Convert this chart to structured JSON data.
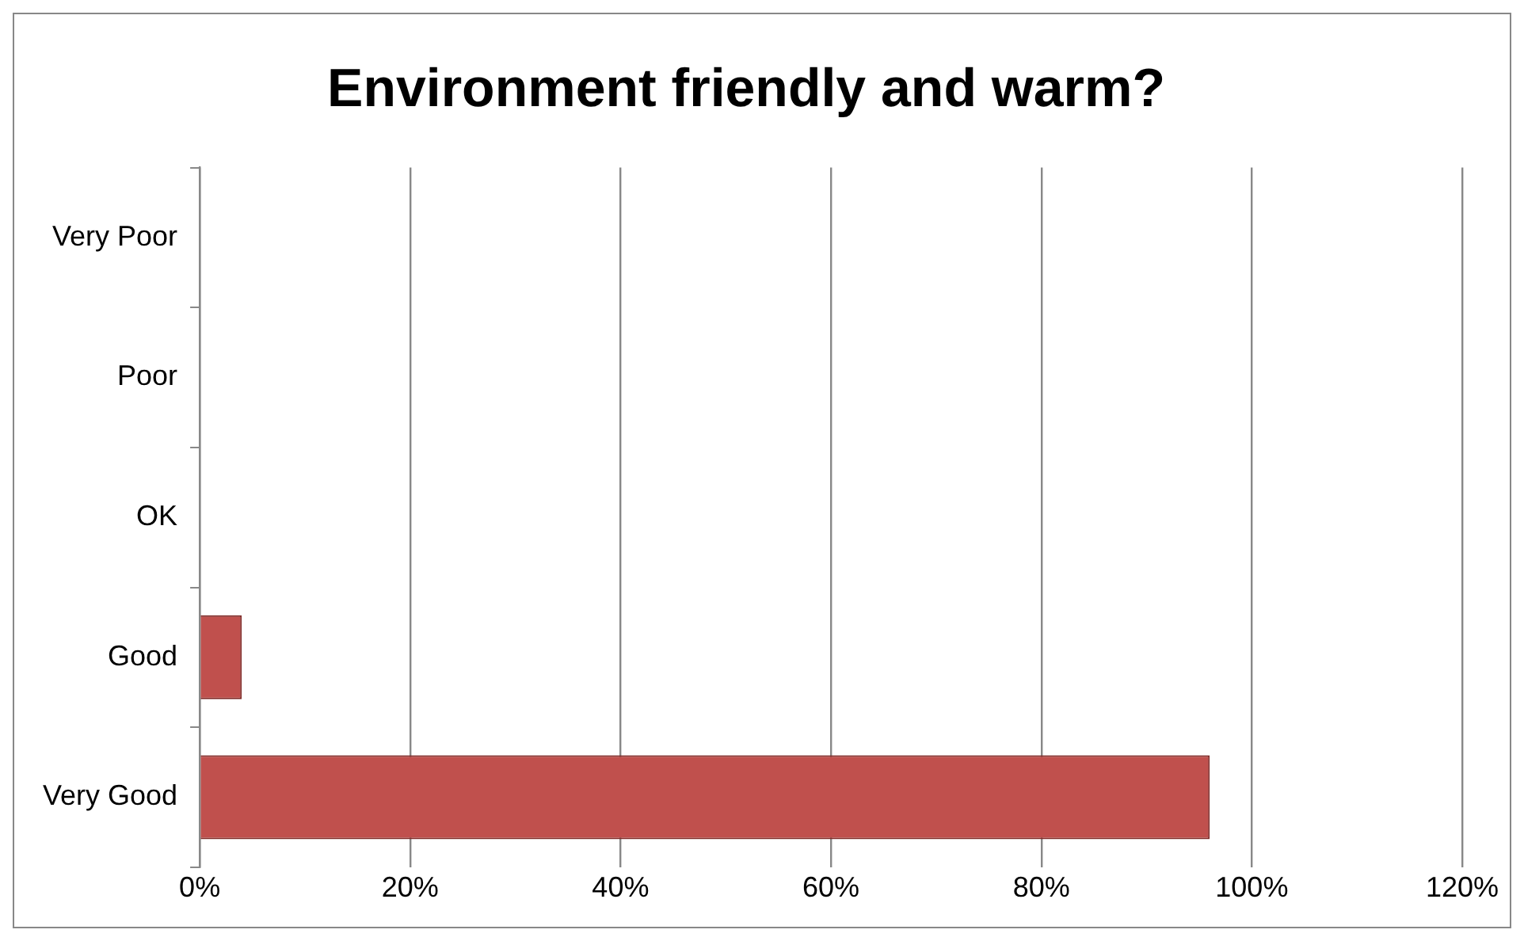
{
  "chart_data": {
    "type": "bar",
    "orientation": "horizontal",
    "title": "Environment friendly and warm?",
    "categories": [
      "Very Poor",
      "Poor",
      "OK",
      "Good",
      "Very Good"
    ],
    "values": [
      0,
      0,
      0,
      4,
      96
    ],
    "color": "#c0504d",
    "xlim": [
      0,
      120
    ],
    "xticks": [
      {
        "value": 0,
        "label": "0%"
      },
      {
        "value": 20,
        "label": "20%"
      },
      {
        "value": 40,
        "label": "40%"
      },
      {
        "value": 60,
        "label": "60%"
      },
      {
        "value": 80,
        "label": "80%"
      },
      {
        "value": 100,
        "label": "100%"
      },
      {
        "value": 120,
        "label": "120%"
      }
    ],
    "grid": "x",
    "legend": false
  }
}
